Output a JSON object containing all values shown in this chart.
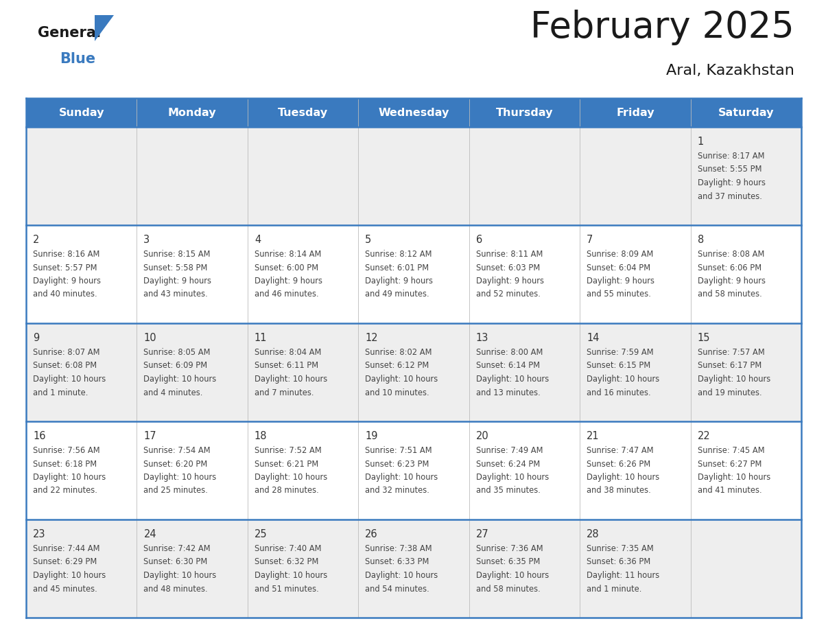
{
  "title": "February 2025",
  "subtitle": "Aral, Kazakhstan",
  "header_bg_color": "#3a7abf",
  "header_text_color": "#ffffff",
  "days_of_week": [
    "Sunday",
    "Monday",
    "Tuesday",
    "Wednesday",
    "Thursday",
    "Friday",
    "Saturday"
  ],
  "row_colors": [
    "#eeeeee",
    "#ffffff"
  ],
  "border_color": "#3a7abf",
  "text_color": "#444444",
  "day_num_color": "#333333",
  "calendar_data": [
    [
      null,
      null,
      null,
      null,
      null,
      null,
      {
        "day": 1,
        "sunrise": "8:17 AM",
        "sunset": "5:55 PM",
        "daylight": "9 hours and 37 minutes"
      }
    ],
    [
      {
        "day": 2,
        "sunrise": "8:16 AM",
        "sunset": "5:57 PM",
        "daylight": "9 hours and 40 minutes"
      },
      {
        "day": 3,
        "sunrise": "8:15 AM",
        "sunset": "5:58 PM",
        "daylight": "9 hours and 43 minutes"
      },
      {
        "day": 4,
        "sunrise": "8:14 AM",
        "sunset": "6:00 PM",
        "daylight": "9 hours and 46 minutes"
      },
      {
        "day": 5,
        "sunrise": "8:12 AM",
        "sunset": "6:01 PM",
        "daylight": "9 hours and 49 minutes"
      },
      {
        "day": 6,
        "sunrise": "8:11 AM",
        "sunset": "6:03 PM",
        "daylight": "9 hours and 52 minutes"
      },
      {
        "day": 7,
        "sunrise": "8:09 AM",
        "sunset": "6:04 PM",
        "daylight": "9 hours and 55 minutes"
      },
      {
        "day": 8,
        "sunrise": "8:08 AM",
        "sunset": "6:06 PM",
        "daylight": "9 hours and 58 minutes"
      }
    ],
    [
      {
        "day": 9,
        "sunrise": "8:07 AM",
        "sunset": "6:08 PM",
        "daylight": "10 hours and 1 minute"
      },
      {
        "day": 10,
        "sunrise": "8:05 AM",
        "sunset": "6:09 PM",
        "daylight": "10 hours and 4 minutes"
      },
      {
        "day": 11,
        "sunrise": "8:04 AM",
        "sunset": "6:11 PM",
        "daylight": "10 hours and 7 minutes"
      },
      {
        "day": 12,
        "sunrise": "8:02 AM",
        "sunset": "6:12 PM",
        "daylight": "10 hours and 10 minutes"
      },
      {
        "day": 13,
        "sunrise": "8:00 AM",
        "sunset": "6:14 PM",
        "daylight": "10 hours and 13 minutes"
      },
      {
        "day": 14,
        "sunrise": "7:59 AM",
        "sunset": "6:15 PM",
        "daylight": "10 hours and 16 minutes"
      },
      {
        "day": 15,
        "sunrise": "7:57 AM",
        "sunset": "6:17 PM",
        "daylight": "10 hours and 19 minutes"
      }
    ],
    [
      {
        "day": 16,
        "sunrise": "7:56 AM",
        "sunset": "6:18 PM",
        "daylight": "10 hours and 22 minutes"
      },
      {
        "day": 17,
        "sunrise": "7:54 AM",
        "sunset": "6:20 PM",
        "daylight": "10 hours and 25 minutes"
      },
      {
        "day": 18,
        "sunrise": "7:52 AM",
        "sunset": "6:21 PM",
        "daylight": "10 hours and 28 minutes"
      },
      {
        "day": 19,
        "sunrise": "7:51 AM",
        "sunset": "6:23 PM",
        "daylight": "10 hours and 32 minutes"
      },
      {
        "day": 20,
        "sunrise": "7:49 AM",
        "sunset": "6:24 PM",
        "daylight": "10 hours and 35 minutes"
      },
      {
        "day": 21,
        "sunrise": "7:47 AM",
        "sunset": "6:26 PM",
        "daylight": "10 hours and 38 minutes"
      },
      {
        "day": 22,
        "sunrise": "7:45 AM",
        "sunset": "6:27 PM",
        "daylight": "10 hours and 41 minutes"
      }
    ],
    [
      {
        "day": 23,
        "sunrise": "7:44 AM",
        "sunset": "6:29 PM",
        "daylight": "10 hours and 45 minutes"
      },
      {
        "day": 24,
        "sunrise": "7:42 AM",
        "sunset": "6:30 PM",
        "daylight": "10 hours and 48 minutes"
      },
      {
        "day": 25,
        "sunrise": "7:40 AM",
        "sunset": "6:32 PM",
        "daylight": "10 hours and 51 minutes"
      },
      {
        "day": 26,
        "sunrise": "7:38 AM",
        "sunset": "6:33 PM",
        "daylight": "10 hours and 54 minutes"
      },
      {
        "day": 27,
        "sunrise": "7:36 AM",
        "sunset": "6:35 PM",
        "daylight": "10 hours and 58 minutes"
      },
      {
        "day": 28,
        "sunrise": "7:35 AM",
        "sunset": "6:36 PM",
        "daylight": "11 hours and 1 minute"
      },
      null
    ]
  ]
}
